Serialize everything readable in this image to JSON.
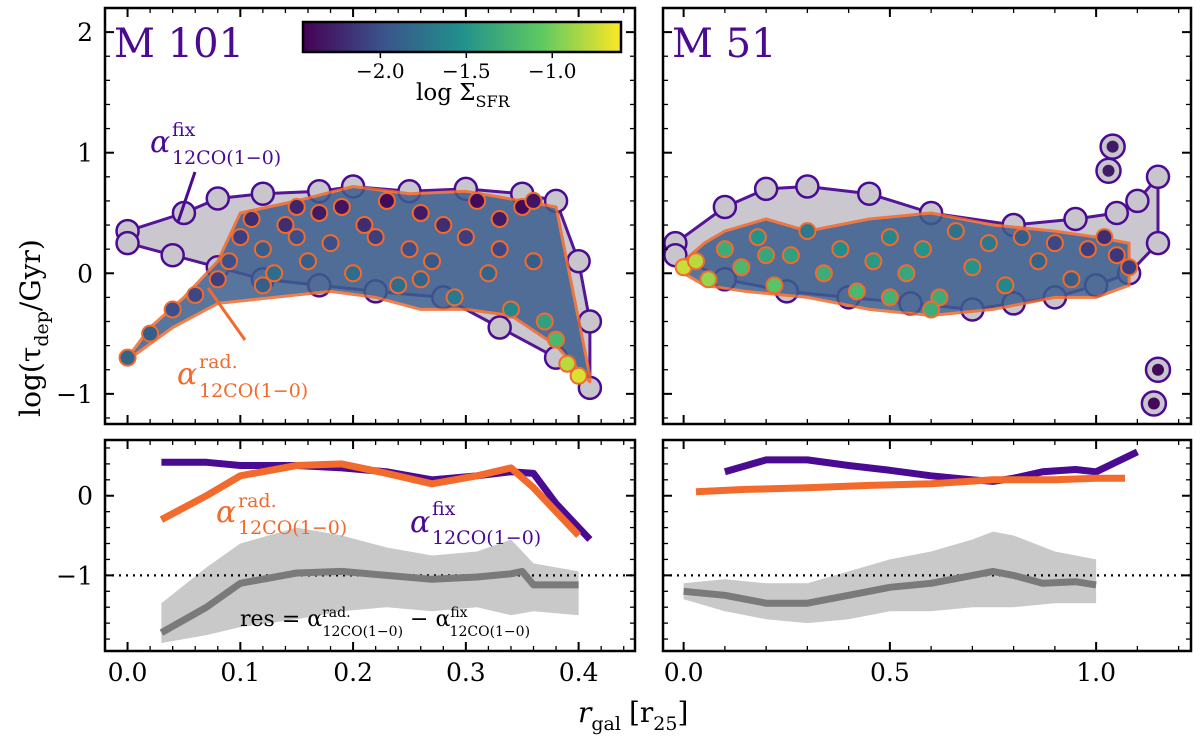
{
  "colors": {
    "fix": "#4b0a92",
    "rad": "#f26a2c",
    "res": "#7a7a7a",
    "gray_fill": "#c8c6cc",
    "band": "#c9c9c9"
  },
  "figure": {
    "ylabel": "log(τ_dep/Gyr)",
    "ylabel_main": "log(τ",
    "ylabel_sub": "dep",
    "ylabel_end": "/Gyr)",
    "xlabel_main": "r",
    "xlabel_sub": "gal",
    "xlabel_unit_open": "[r",
    "xlabel_unit_sub": "25",
    "xlabel_unit_close": "]"
  },
  "colorbar": {
    "label": "log Σ",
    "label_sub": "SFR",
    "min": -2.45,
    "max": -0.6,
    "ticks": [
      "−2.0",
      "−1.5",
      "−1.0"
    ],
    "tick_values": [
      -2.0,
      -1.5,
      -1.0
    ],
    "stops": [
      "#440154",
      "#3b528b",
      "#21918c",
      "#5ec962",
      "#fde725"
    ]
  },
  "legend_labels": {
    "fix_alpha": "α",
    "fix_sup": "fix",
    "fix_sub": "12CO(1−0)",
    "rad_alpha": "α",
    "rad_sup": "rad.",
    "rad_sub": "12CO(1−0)",
    "res_prefix": "res = α",
    "res_minus": " − α"
  },
  "chart_data": [
    {
      "type": "scatter",
      "panel": "top-left",
      "title": "M 101",
      "xlim": [
        -0.02,
        0.45
      ],
      "ylim": [
        -1.25,
        2.2
      ],
      "xticks": [
        0.0,
        0.1,
        0.2,
        0.3,
        0.4
      ],
      "xtick_labels": [
        "0.0",
        "0.1",
        "0.2",
        "0.3",
        "0.4"
      ],
      "yticks": [
        -1,
        0,
        1,
        2
      ],
      "ytick_labels": [
        "−1",
        "0",
        "1",
        "2"
      ],
      "fix_envelope_upper": [
        [
          0.0,
          0.35
        ],
        [
          0.05,
          0.5
        ],
        [
          0.08,
          0.62
        ],
        [
          0.12,
          0.66
        ],
        [
          0.17,
          0.68
        ],
        [
          0.2,
          0.72
        ],
        [
          0.25,
          0.68
        ],
        [
          0.3,
          0.7
        ],
        [
          0.35,
          0.66
        ],
        [
          0.38,
          0.6
        ],
        [
          0.4,
          0.1
        ],
        [
          0.41,
          -0.4
        ]
      ],
      "fix_envelope_lower": [
        [
          0.41,
          -0.95
        ],
        [
          0.38,
          -0.7
        ],
        [
          0.33,
          -0.45
        ],
        [
          0.28,
          -0.2
        ],
        [
          0.22,
          -0.15
        ],
        [
          0.17,
          -0.1
        ],
        [
          0.12,
          -0.05
        ],
        [
          0.08,
          0.05
        ],
        [
          0.04,
          0.15
        ],
        [
          0.0,
          0.25
        ]
      ],
      "rad_envelope_upper": [
        [
          0.0,
          -0.7
        ],
        [
          0.02,
          -0.45
        ],
        [
          0.05,
          -0.2
        ],
        [
          0.08,
          0.1
        ],
        [
          0.1,
          0.5
        ],
        [
          0.15,
          0.6
        ],
        [
          0.2,
          0.72
        ],
        [
          0.25,
          0.66
        ],
        [
          0.3,
          0.68
        ],
        [
          0.35,
          0.6
        ],
        [
          0.38,
          0.55
        ],
        [
          0.41,
          -0.85
        ]
      ],
      "rad_envelope_lower": [
        [
          0.41,
          -0.9
        ],
        [
          0.38,
          -0.6
        ],
        [
          0.34,
          -0.35
        ],
        [
          0.3,
          -0.3
        ],
        [
          0.26,
          -0.3
        ],
        [
          0.22,
          -0.2
        ],
        [
          0.18,
          -0.15
        ],
        [
          0.13,
          -0.2
        ],
        [
          0.08,
          -0.25
        ],
        [
          0.04,
          -0.45
        ],
        [
          0.0,
          -0.72
        ]
      ],
      "rad_points": [
        [
          0.0,
          -0.7,
          -1.85
        ],
        [
          0.02,
          -0.5,
          -1.9
        ],
        [
          0.04,
          -0.3,
          -2.0
        ],
        [
          0.06,
          -0.18,
          -2.05
        ],
        [
          0.08,
          -0.05,
          -2.1
        ],
        [
          0.09,
          0.1,
          -2.0
        ],
        [
          0.1,
          0.3,
          -2.1
        ],
        [
          0.11,
          0.45,
          -2.2
        ],
        [
          0.12,
          0.2,
          -1.9
        ],
        [
          0.13,
          0.0,
          -1.8
        ],
        [
          0.14,
          0.4,
          -2.2
        ],
        [
          0.15,
          0.3,
          -2.0
        ],
        [
          0.16,
          0.1,
          -1.9
        ],
        [
          0.17,
          0.5,
          -2.3
        ],
        [
          0.18,
          0.25,
          -2.0
        ],
        [
          0.19,
          0.55,
          -2.35
        ],
        [
          0.2,
          0.0,
          -1.8
        ],
        [
          0.21,
          0.4,
          -2.2
        ],
        [
          0.22,
          0.3,
          -2.1
        ],
        [
          0.23,
          0.6,
          -2.4
        ],
        [
          0.24,
          -0.1,
          -1.8
        ],
        [
          0.25,
          0.2,
          -2.0
        ],
        [
          0.26,
          0.5,
          -2.3
        ],
        [
          0.27,
          0.1,
          -1.95
        ],
        [
          0.28,
          0.4,
          -2.2
        ],
        [
          0.29,
          -0.2,
          -1.7
        ],
        [
          0.3,
          0.3,
          -2.1
        ],
        [
          0.31,
          0.6,
          -2.4
        ],
        [
          0.32,
          0.0,
          -1.85
        ],
        [
          0.33,
          0.45,
          -2.3
        ],
        [
          0.34,
          -0.3,
          -1.6
        ],
        [
          0.35,
          0.55,
          -2.4
        ],
        [
          0.36,
          0.1,
          -1.9
        ],
        [
          0.37,
          -0.4,
          -1.4
        ],
        [
          0.38,
          -0.55,
          -1.2
        ],
        [
          0.39,
          -0.75,
          -0.8
        ],
        [
          0.4,
          -0.85,
          -0.7
        ],
        [
          0.36,
          0.6,
          -2.35
        ],
        [
          0.15,
          0.55,
          -2.25
        ],
        [
          0.12,
          -0.1,
          -1.9
        ],
        [
          0.26,
          -0.05,
          -1.85
        ],
        [
          0.33,
          0.2,
          -2.05
        ]
      ]
    },
    {
      "type": "scatter",
      "panel": "top-right",
      "title": "M 51",
      "xlim": [
        -0.05,
        1.23
      ],
      "ylim": [
        -1.25,
        2.2
      ],
      "xticks": [
        0.0,
        0.5,
        1.0
      ],
      "xtick_labels": [
        "0.0",
        "0.5",
        "1.0"
      ],
      "yticks": [
        -1,
        0,
        1,
        2
      ],
      "ytick_labels": [
        "−1",
        "0",
        "1",
        "2"
      ],
      "fix_envelope_upper": [
        [
          -0.02,
          0.25
        ],
        [
          0.1,
          0.55
        ],
        [
          0.2,
          0.7
        ],
        [
          0.3,
          0.72
        ],
        [
          0.45,
          0.66
        ],
        [
          0.6,
          0.5
        ],
        [
          0.8,
          0.4
        ],
        [
          0.95,
          0.45
        ],
        [
          1.05,
          0.5
        ],
        [
          1.1,
          0.6
        ],
        [
          1.15,
          0.8
        ]
      ],
      "fix_envelope_lower": [
        [
          1.15,
          0.25
        ],
        [
          1.08,
          0.0
        ],
        [
          1.0,
          -0.1
        ],
        [
          0.9,
          -0.2
        ],
        [
          0.8,
          -0.25
        ],
        [
          0.7,
          -0.3
        ],
        [
          0.55,
          -0.25
        ],
        [
          0.4,
          -0.2
        ],
        [
          0.25,
          -0.15
        ],
        [
          0.1,
          -0.05
        ],
        [
          -0.02,
          0.15
        ]
      ],
      "rad_envelope_upper": [
        [
          0.0,
          0.1
        ],
        [
          0.05,
          0.25
        ],
        [
          0.1,
          0.35
        ],
        [
          0.2,
          0.45
        ],
        [
          0.3,
          0.35
        ],
        [
          0.45,
          0.45
        ],
        [
          0.6,
          0.5
        ],
        [
          0.75,
          0.4
        ],
        [
          0.9,
          0.35
        ],
        [
          1.0,
          0.3
        ],
        [
          1.08,
          0.25
        ]
      ],
      "rad_envelope_lower": [
        [
          1.08,
          -0.1
        ],
        [
          1.0,
          -0.2
        ],
        [
          0.9,
          -0.2
        ],
        [
          0.75,
          -0.3
        ],
        [
          0.6,
          -0.35
        ],
        [
          0.45,
          -0.3
        ],
        [
          0.3,
          -0.2
        ],
        [
          0.15,
          -0.15
        ],
        [
          0.05,
          -0.1
        ],
        [
          0.0,
          0.0
        ]
      ],
      "rad_points": [
        [
          0.0,
          0.05,
          -0.75
        ],
        [
          0.03,
          0.1,
          -0.8
        ],
        [
          0.06,
          -0.05,
          -0.9
        ],
        [
          0.1,
          0.2,
          -1.3
        ],
        [
          0.14,
          0.05,
          -1.2
        ],
        [
          0.18,
          0.3,
          -1.5
        ],
        [
          0.22,
          -0.1,
          -1.1
        ],
        [
          0.26,
          0.15,
          -1.4
        ],
        [
          0.3,
          0.35,
          -1.7
        ],
        [
          0.34,
          0.0,
          -1.3
        ],
        [
          0.38,
          0.2,
          -1.55
        ],
        [
          0.42,
          -0.15,
          -1.2
        ],
        [
          0.46,
          0.1,
          -1.45
        ],
        [
          0.5,
          0.3,
          -1.6
        ],
        [
          0.54,
          0.0,
          -1.35
        ],
        [
          0.58,
          0.2,
          -1.5
        ],
        [
          0.62,
          -0.2,
          -1.3
        ],
        [
          0.66,
          0.35,
          -1.75
        ],
        [
          0.7,
          0.05,
          -1.5
        ],
        [
          0.74,
          0.25,
          -1.7
        ],
        [
          0.78,
          -0.1,
          -1.6
        ],
        [
          0.82,
          0.3,
          -1.9
        ],
        [
          0.86,
          0.1,
          -1.85
        ],
        [
          0.9,
          0.25,
          -2.05
        ],
        [
          0.94,
          -0.05,
          -1.9
        ],
        [
          0.98,
          0.2,
          -2.1
        ],
        [
          1.02,
          0.3,
          -2.2
        ],
        [
          1.05,
          0.15,
          -2.15
        ],
        [
          1.08,
          0.05,
          -2.1
        ],
        [
          0.6,
          -0.3,
          -1.3
        ],
        [
          0.2,
          0.15,
          -1.35
        ],
        [
          0.5,
          -0.2,
          -1.25
        ]
      ],
      "fix_only_points": [
        [
          1.04,
          1.05,
          -2.3
        ],
        [
          1.03,
          0.85,
          -2.3
        ],
        [
          1.15,
          -0.8,
          -2.4
        ],
        [
          1.14,
          -1.08,
          -2.4
        ]
      ]
    },
    {
      "type": "line",
      "panel": "bottom-left",
      "xlim": [
        -0.02,
        0.45
      ],
      "ylim": [
        -1.95,
        0.7
      ],
      "yticks": [
        -1,
        0
      ],
      "ytick_labels": [
        "−1",
        "0"
      ],
      "hline": -1,
      "series": [
        {
          "name": "fix",
          "x": [
            0.03,
            0.07,
            0.1,
            0.15,
            0.19,
            0.23,
            0.27,
            0.31,
            0.34,
            0.36,
            0.38,
            0.41
          ],
          "y": [
            0.42,
            0.42,
            0.38,
            0.38,
            0.35,
            0.3,
            0.2,
            0.25,
            0.3,
            0.28,
            -0.1,
            -0.55
          ]
        },
        {
          "name": "rad",
          "x": [
            0.03,
            0.07,
            0.1,
            0.15,
            0.19,
            0.23,
            0.27,
            0.31,
            0.34,
            0.36,
            0.38,
            0.4
          ],
          "y": [
            -0.3,
            0.0,
            0.25,
            0.38,
            0.4,
            0.28,
            0.15,
            0.25,
            0.35,
            0.1,
            -0.2,
            -0.5
          ]
        },
        {
          "name": "res",
          "x": [
            0.03,
            0.07,
            0.1,
            0.15,
            0.19,
            0.23,
            0.27,
            0.31,
            0.34,
            0.35,
            0.36,
            0.4
          ],
          "y": [
            -1.72,
            -1.4,
            -1.1,
            -0.97,
            -0.95,
            -1.0,
            -1.05,
            -1.02,
            -0.98,
            -0.95,
            -1.12,
            -1.12
          ]
        }
      ],
      "res_band_upper": [
        [
          0.03,
          -1.35
        ],
        [
          0.07,
          -0.9
        ],
        [
          0.1,
          -0.6
        ],
        [
          0.15,
          -0.4
        ],
        [
          0.19,
          -0.5
        ],
        [
          0.23,
          -0.65
        ],
        [
          0.27,
          -0.75
        ],
        [
          0.31,
          -0.7
        ],
        [
          0.34,
          -0.55
        ],
        [
          0.36,
          -0.85
        ],
        [
          0.4,
          -0.95
        ]
      ],
      "res_band_lower": [
        [
          0.4,
          -1.5
        ],
        [
          0.36,
          -1.45
        ],
        [
          0.34,
          -1.5
        ],
        [
          0.31,
          -1.4
        ],
        [
          0.27,
          -1.45
        ],
        [
          0.23,
          -1.4
        ],
        [
          0.19,
          -1.45
        ],
        [
          0.15,
          -1.55
        ],
        [
          0.1,
          -1.65
        ],
        [
          0.07,
          -1.75
        ],
        [
          0.03,
          -1.85
        ]
      ]
    },
    {
      "type": "line",
      "panel": "bottom-right",
      "xlim": [
        -0.05,
        1.23
      ],
      "ylim": [
        -1.95,
        0.7
      ],
      "yticks": [
        -1,
        0
      ],
      "ytick_labels": [
        "−1",
        "0"
      ],
      "hline": -1,
      "series": [
        {
          "name": "fix",
          "x": [
            0.1,
            0.2,
            0.3,
            0.4,
            0.5,
            0.6,
            0.7,
            0.75,
            0.8,
            0.87,
            0.95,
            1.0,
            1.1
          ],
          "y": [
            0.3,
            0.45,
            0.45,
            0.38,
            0.32,
            0.25,
            0.2,
            0.18,
            0.22,
            0.3,
            0.33,
            0.3,
            0.55
          ]
        },
        {
          "name": "rad",
          "x": [
            0.03,
            0.15,
            0.3,
            0.45,
            0.6,
            0.75,
            0.9,
            1.0,
            1.07
          ],
          "y": [
            0.05,
            0.08,
            0.1,
            0.13,
            0.15,
            0.2,
            0.2,
            0.22,
            0.22
          ]
        },
        {
          "name": "res",
          "x": [
            0.0,
            0.1,
            0.2,
            0.3,
            0.4,
            0.5,
            0.6,
            0.7,
            0.75,
            0.8,
            0.87,
            0.95,
            1.0
          ],
          "y": [
            -1.2,
            -1.25,
            -1.35,
            -1.35,
            -1.25,
            -1.15,
            -1.1,
            -1.0,
            -0.95,
            -1.0,
            -1.1,
            -1.08,
            -1.12
          ]
        }
      ],
      "res_band_upper": [
        [
          0.0,
          -1.1
        ],
        [
          0.1,
          -1.05
        ],
        [
          0.2,
          -1.1
        ],
        [
          0.3,
          -1.1
        ],
        [
          0.4,
          -0.95
        ],
        [
          0.5,
          -0.8
        ],
        [
          0.6,
          -0.7
        ],
        [
          0.7,
          -0.55
        ],
        [
          0.75,
          -0.45
        ],
        [
          0.8,
          -0.5
        ],
        [
          0.9,
          -0.7
        ],
        [
          1.0,
          -0.8
        ]
      ],
      "res_band_lower": [
        [
          1.0,
          -1.35
        ],
        [
          0.9,
          -1.35
        ],
        [
          0.8,
          -1.4
        ],
        [
          0.7,
          -1.4
        ],
        [
          0.6,
          -1.45
        ],
        [
          0.5,
          -1.45
        ],
        [
          0.4,
          -1.55
        ],
        [
          0.3,
          -1.6
        ],
        [
          0.2,
          -1.55
        ],
        [
          0.1,
          -1.45
        ],
        [
          0.0,
          -1.3
        ]
      ]
    }
  ]
}
